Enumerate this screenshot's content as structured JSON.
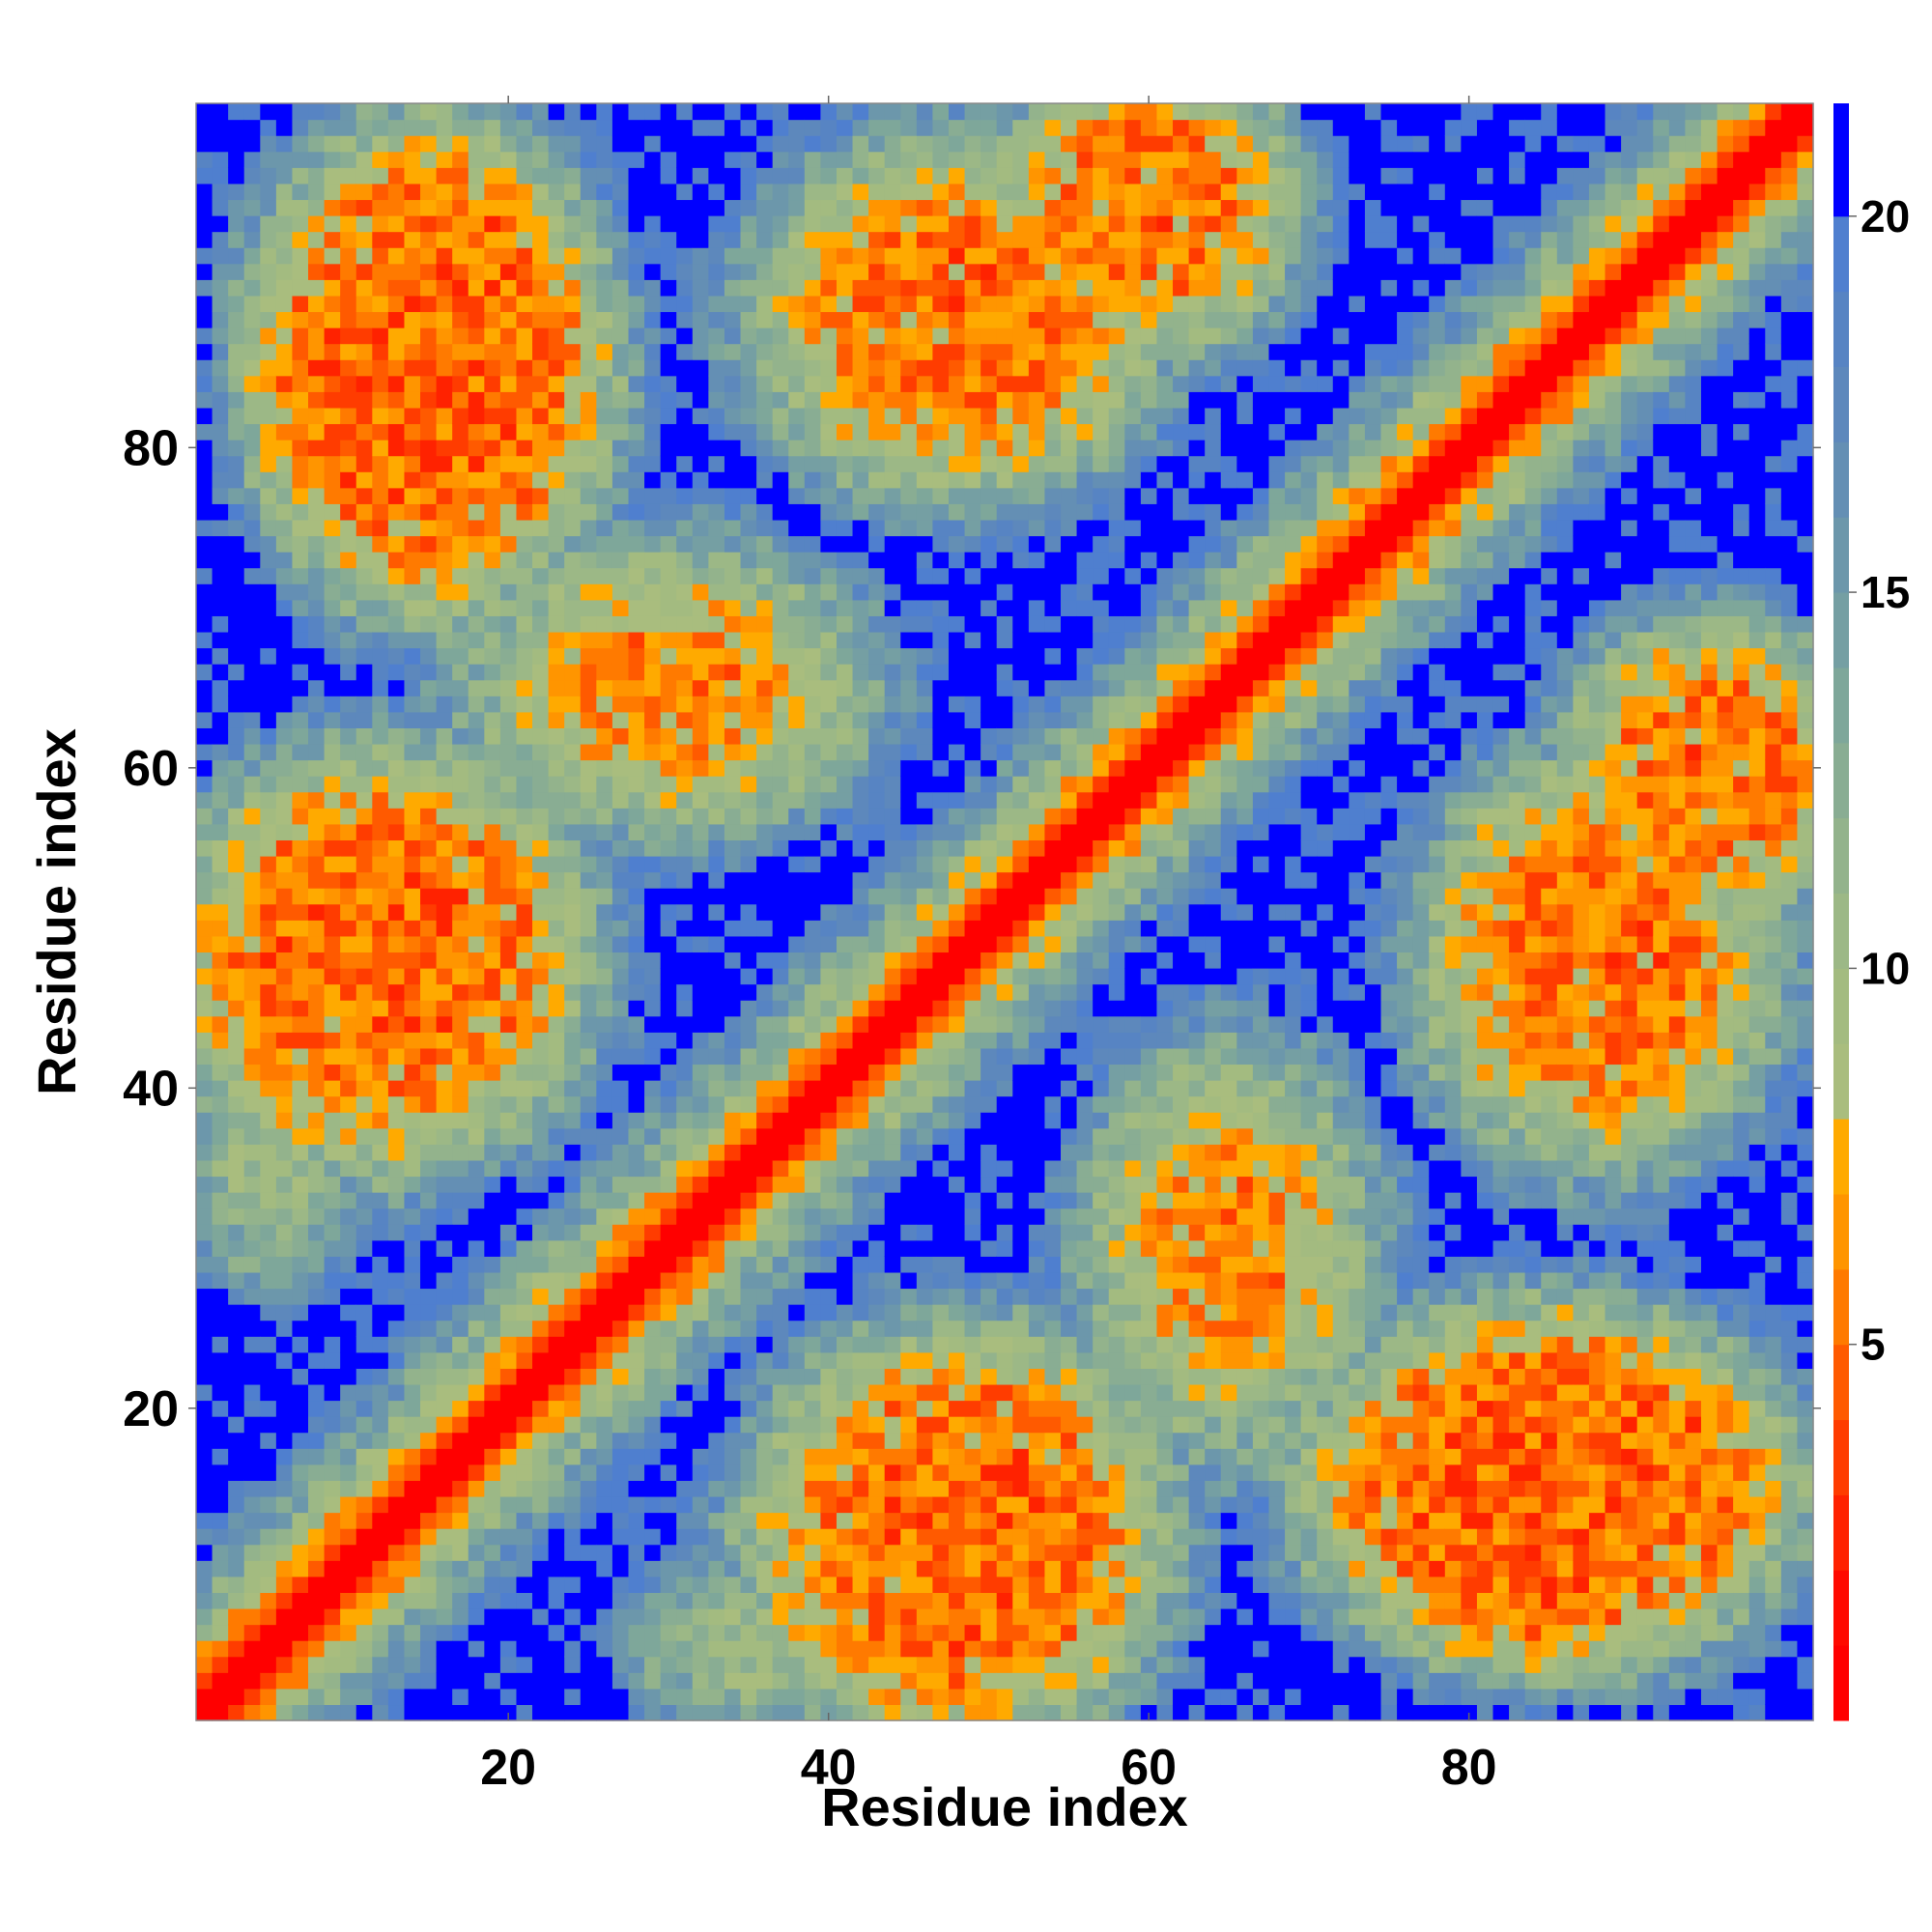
{
  "chart_data": {
    "type": "heatmap",
    "title": "",
    "xlabel": "Residue index",
    "ylabel": "Residue index",
    "n": 101,
    "xlim": [
      1,
      101
    ],
    "ylim": [
      1,
      101
    ],
    "x_ticks": [
      20,
      40,
      60,
      80
    ],
    "y_ticks": [
      20,
      40,
      60,
      80
    ],
    "colorbar": {
      "min": 0,
      "max": 21.5,
      "ticks": [
        5,
        10,
        15,
        20
      ],
      "levels": [
        {
          "upto": 1,
          "color": "#ff0000"
        },
        {
          "upto": 2,
          "color": "#ff0a00"
        },
        {
          "upto": 3,
          "color": "#ff2200"
        },
        {
          "upto": 4,
          "color": "#ff3c00"
        },
        {
          "upto": 5,
          "color": "#ff5a00"
        },
        {
          "upto": 6,
          "color": "#ff7a00"
        },
        {
          "upto": 7,
          "color": "#ff9500"
        },
        {
          "upto": 8,
          "color": "#ffaa00"
        },
        {
          "upto": 9,
          "color": "#a9bd7e"
        },
        {
          "upto": 10,
          "color": "#a3bb80"
        },
        {
          "upto": 11,
          "color": "#9cb886"
        },
        {
          "upto": 12,
          "color": "#93b38c"
        },
        {
          "upto": 13,
          "color": "#89ad93"
        },
        {
          "upto": 14,
          "color": "#7ea79a"
        },
        {
          "upto": 15,
          "color": "#759fa3"
        },
        {
          "upto": 16,
          "color": "#6c97ab"
        },
        {
          "upto": 17,
          "color": "#648fb4"
        },
        {
          "upto": 18,
          "color": "#5d88bc"
        },
        {
          "upto": 19,
          "color": "#5784c3"
        },
        {
          "upto": 20,
          "color": "#4f7fcf"
        },
        {
          "upto": 21.5,
          "color": "#0000ff"
        }
      ]
    },
    "description_of_values": "Symmetric residue-residue distance map: values near 0 on the diagonal, secondary-structure contact bands around residues 10-30, 40-60 and 80-100, large regions above 20 (blue)."
  }
}
